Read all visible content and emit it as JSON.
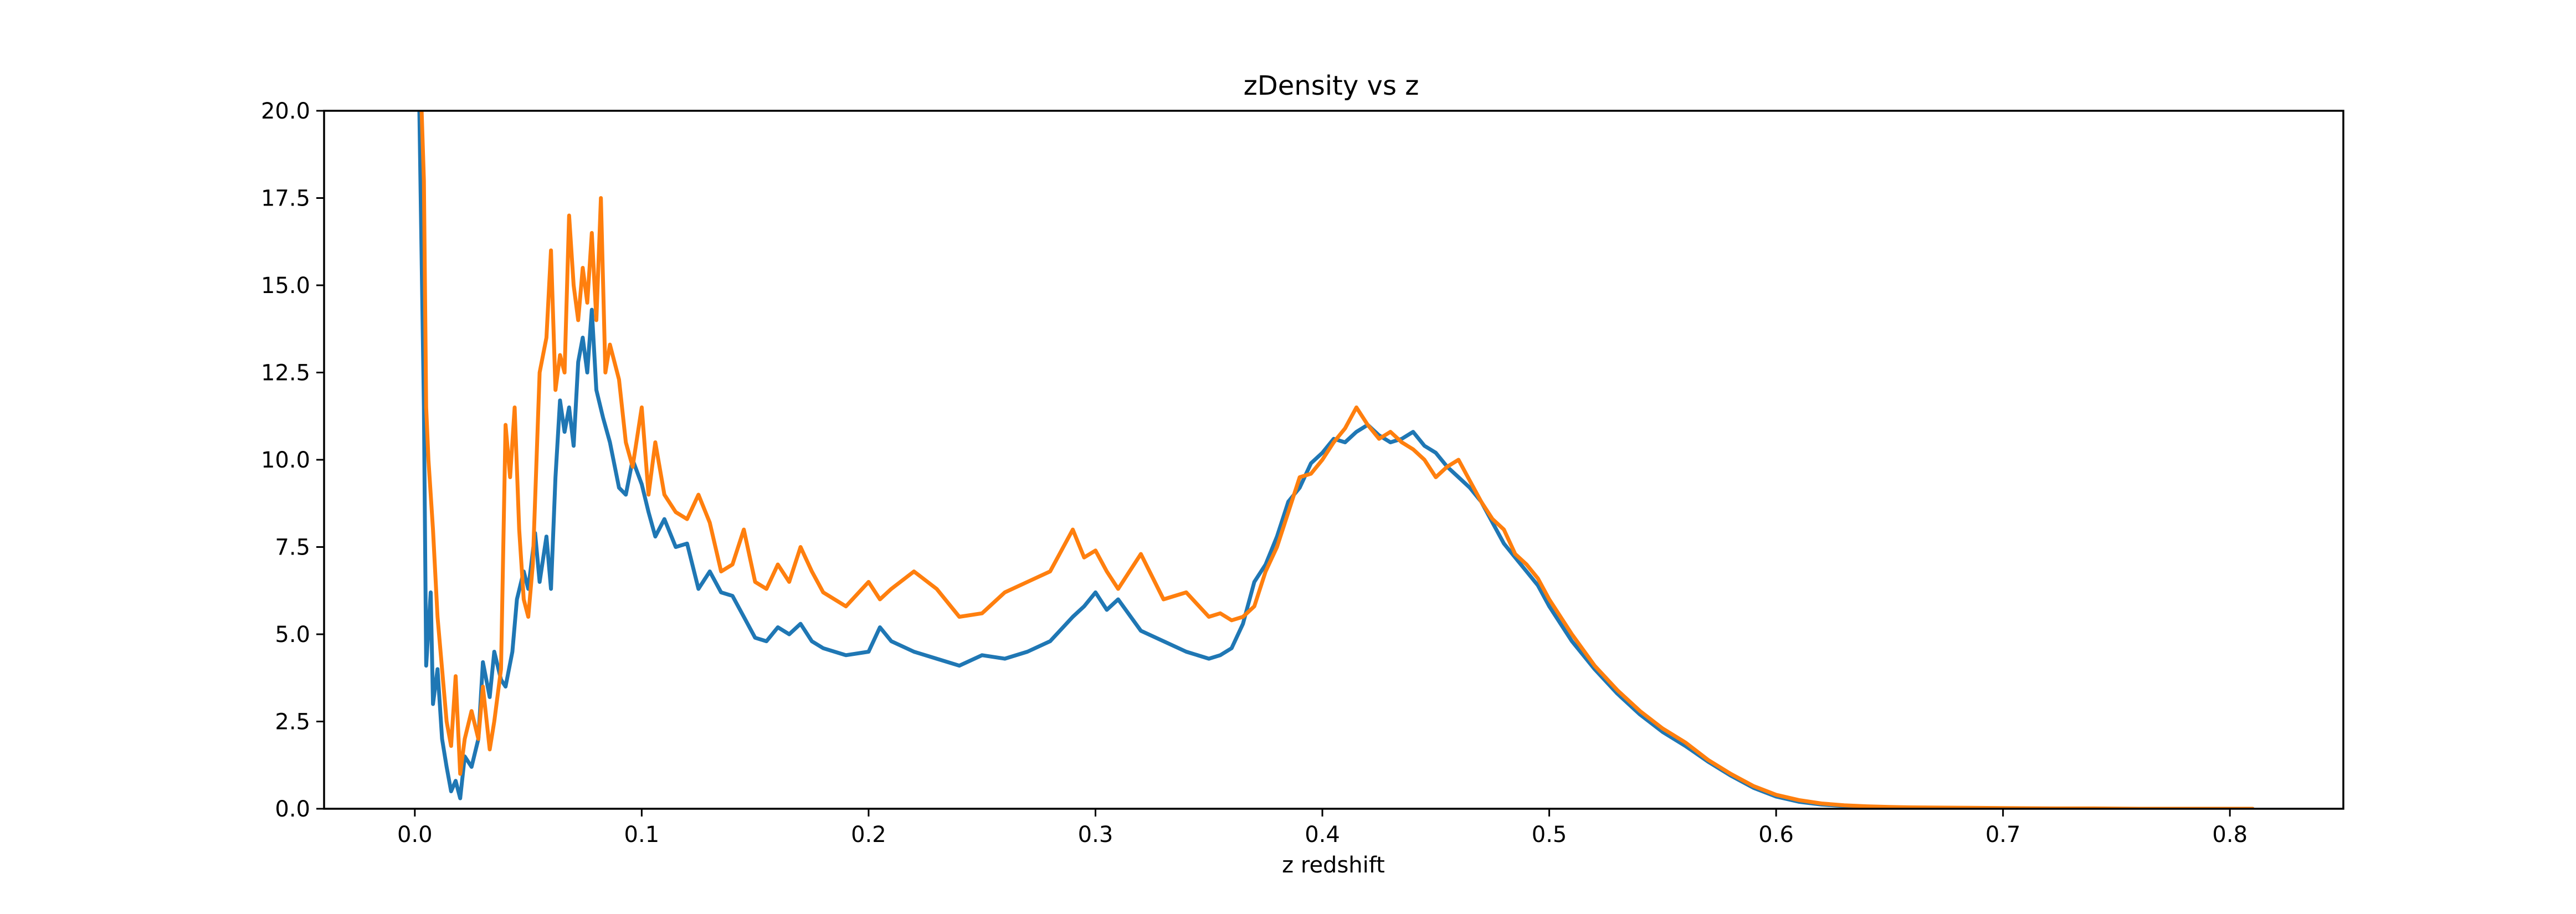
{
  "chart_data": {
    "type": "line",
    "title": "zDensity vs z",
    "xlabel": "z redshift",
    "ylabel": "",
    "xlim": [
      -0.04,
      0.85
    ],
    "ylim": [
      0,
      20
    ],
    "xticks": [
      0.0,
      0.1,
      0.2,
      0.3,
      0.4,
      0.5,
      0.6,
      0.7,
      0.8
    ],
    "xtick_labels": [
      "0.0",
      "0.1",
      "0.2",
      "0.3",
      "0.4",
      "0.5",
      "0.6",
      "0.7",
      "0.8"
    ],
    "yticks": [
      0,
      2.5,
      5,
      7.5,
      10,
      12.5,
      15,
      17.5,
      20
    ],
    "ytick_labels": [
      "0.0",
      "2.5",
      "5.0",
      "7.5",
      "10.0",
      "12.5",
      "15.0",
      "17.5",
      "20.0"
    ],
    "grid": false,
    "series": [
      {
        "color": "#1f77b4",
        "x": [
          0.002,
          0.004,
          0.005,
          0.007,
          0.008,
          0.01,
          0.012,
          0.014,
          0.016,
          0.018,
          0.02,
          0.022,
          0.025,
          0.028,
          0.03,
          0.033,
          0.035,
          0.038,
          0.04,
          0.043,
          0.045,
          0.048,
          0.05,
          0.053,
          0.055,
          0.058,
          0.06,
          0.062,
          0.064,
          0.066,
          0.068,
          0.07,
          0.072,
          0.074,
          0.076,
          0.078,
          0.08,
          0.083,
          0.086,
          0.09,
          0.093,
          0.096,
          0.1,
          0.103,
          0.106,
          0.11,
          0.115,
          0.12,
          0.125,
          0.13,
          0.135,
          0.14,
          0.145,
          0.15,
          0.155,
          0.16,
          0.165,
          0.17,
          0.175,
          0.18,
          0.19,
          0.2,
          0.205,
          0.21,
          0.22,
          0.23,
          0.24,
          0.25,
          0.26,
          0.27,
          0.28,
          0.29,
          0.295,
          0.3,
          0.305,
          0.31,
          0.32,
          0.33,
          0.34,
          0.35,
          0.355,
          0.36,
          0.365,
          0.37,
          0.375,
          0.38,
          0.385,
          0.39,
          0.395,
          0.4,
          0.405,
          0.41,
          0.415,
          0.42,
          0.425,
          0.43,
          0.435,
          0.44,
          0.445,
          0.45,
          0.455,
          0.46,
          0.465,
          0.47,
          0.475,
          0.48,
          0.485,
          0.49,
          0.495,
          0.5,
          0.51,
          0.52,
          0.53,
          0.54,
          0.55,
          0.56,
          0.57,
          0.58,
          0.59,
          0.6,
          0.61,
          0.62,
          0.63,
          0.64,
          0.65,
          0.66,
          0.68,
          0.7,
          0.72,
          0.74,
          0.76,
          0.78,
          0.8,
          0.81
        ],
        "y": [
          20.0,
          11.5,
          4.1,
          6.2,
          3.0,
          4.0,
          2.0,
          1.2,
          0.5,
          0.8,
          0.3,
          1.5,
          1.2,
          2.0,
          4.2,
          3.2,
          4.5,
          3.7,
          3.5,
          4.5,
          6.0,
          6.8,
          6.3,
          7.9,
          6.5,
          7.8,
          6.3,
          9.5,
          11.7,
          10.8,
          11.5,
          10.4,
          12.8,
          13.5,
          12.5,
          14.3,
          12.0,
          11.2,
          10.5,
          9.2,
          9.0,
          10.0,
          9.3,
          8.5,
          7.8,
          8.3,
          7.5,
          7.6,
          6.3,
          6.8,
          6.2,
          6.1,
          5.5,
          4.9,
          4.8,
          5.2,
          5.0,
          5.3,
          4.8,
          4.6,
          4.4,
          4.5,
          5.2,
          4.8,
          4.5,
          4.3,
          4.1,
          4.4,
          4.3,
          4.5,
          4.8,
          5.5,
          5.8,
          6.2,
          5.7,
          6.0,
          5.1,
          4.8,
          4.5,
          4.3,
          4.4,
          4.6,
          5.3,
          6.5,
          7.0,
          7.8,
          8.8,
          9.2,
          9.9,
          10.2,
          10.6,
          10.5,
          10.8,
          11.0,
          10.7,
          10.5,
          10.6,
          10.8,
          10.4,
          10.2,
          9.8,
          9.5,
          9.2,
          8.8,
          8.2,
          7.6,
          7.2,
          6.8,
          6.4,
          5.8,
          4.8,
          4.0,
          3.3,
          2.7,
          2.2,
          1.8,
          1.35,
          0.95,
          0.6,
          0.35,
          0.2,
          0.12,
          0.08,
          0.05,
          0.04,
          0.03,
          0.02,
          0.01,
          0.01,
          0.0,
          0.0,
          0.0,
          0.0,
          0.0
        ]
      },
      {
        "color": "#ff7f0e",
        "x": [
          0.003,
          0.004,
          0.005,
          0.006,
          0.008,
          0.01,
          0.012,
          0.014,
          0.016,
          0.018,
          0.02,
          0.022,
          0.025,
          0.028,
          0.03,
          0.033,
          0.035,
          0.038,
          0.04,
          0.042,
          0.044,
          0.046,
          0.048,
          0.05,
          0.052,
          0.055,
          0.058,
          0.06,
          0.062,
          0.064,
          0.066,
          0.068,
          0.07,
          0.072,
          0.074,
          0.076,
          0.078,
          0.08,
          0.082,
          0.084,
          0.086,
          0.09,
          0.093,
          0.096,
          0.1,
          0.103,
          0.106,
          0.11,
          0.115,
          0.12,
          0.125,
          0.13,
          0.135,
          0.14,
          0.145,
          0.15,
          0.155,
          0.16,
          0.165,
          0.17,
          0.175,
          0.18,
          0.19,
          0.2,
          0.205,
          0.21,
          0.22,
          0.23,
          0.24,
          0.25,
          0.26,
          0.27,
          0.28,
          0.29,
          0.295,
          0.3,
          0.305,
          0.31,
          0.32,
          0.33,
          0.34,
          0.35,
          0.355,
          0.36,
          0.365,
          0.37,
          0.375,
          0.38,
          0.385,
          0.39,
          0.395,
          0.4,
          0.405,
          0.41,
          0.415,
          0.42,
          0.425,
          0.43,
          0.435,
          0.44,
          0.445,
          0.45,
          0.455,
          0.46,
          0.465,
          0.47,
          0.475,
          0.48,
          0.485,
          0.49,
          0.495,
          0.5,
          0.51,
          0.52,
          0.53,
          0.54,
          0.55,
          0.56,
          0.57,
          0.58,
          0.59,
          0.6,
          0.61,
          0.62,
          0.63,
          0.64,
          0.65,
          0.66,
          0.68,
          0.7,
          0.72,
          0.74,
          0.76,
          0.78,
          0.8,
          0.81
        ],
        "y": [
          20.0,
          18.0,
          11.5,
          10.0,
          8.0,
          5.5,
          4.0,
          2.5,
          1.8,
          3.8,
          1.0,
          2.0,
          2.8,
          2.0,
          3.5,
          1.7,
          2.5,
          4.0,
          11.0,
          9.5,
          11.5,
          8.0,
          6.0,
          5.5,
          7.0,
          12.5,
          13.5,
          16.0,
          12.0,
          13.0,
          12.5,
          17.0,
          15.0,
          14.0,
          15.5,
          14.5,
          16.5,
          14.0,
          17.5,
          12.5,
          13.3,
          12.3,
          10.5,
          9.8,
          11.5,
          9.0,
          10.5,
          9.0,
          8.5,
          8.3,
          9.0,
          8.2,
          6.8,
          7.0,
          8.0,
          6.5,
          6.3,
          7.0,
          6.5,
          7.5,
          6.8,
          6.2,
          5.8,
          6.5,
          6.0,
          6.3,
          6.8,
          6.3,
          5.5,
          5.6,
          6.2,
          6.5,
          6.8,
          8.0,
          7.2,
          7.4,
          6.8,
          6.3,
          7.3,
          6.0,
          6.2,
          5.5,
          5.6,
          5.4,
          5.5,
          5.8,
          6.8,
          7.5,
          8.5,
          9.5,
          9.6,
          10.0,
          10.5,
          10.9,
          11.5,
          11.0,
          10.6,
          10.8,
          10.5,
          10.3,
          10.0,
          9.5,
          9.8,
          10.0,
          9.4,
          8.8,
          8.3,
          8.0,
          7.3,
          7.0,
          6.6,
          6.0,
          5.0,
          4.1,
          3.4,
          2.8,
          2.3,
          1.9,
          1.4,
          1.0,
          0.65,
          0.4,
          0.25,
          0.15,
          0.1,
          0.07,
          0.05,
          0.04,
          0.03,
          0.02,
          0.01,
          0.01,
          0.0,
          0.0,
          0.0,
          0.0
        ]
      }
    ]
  }
}
